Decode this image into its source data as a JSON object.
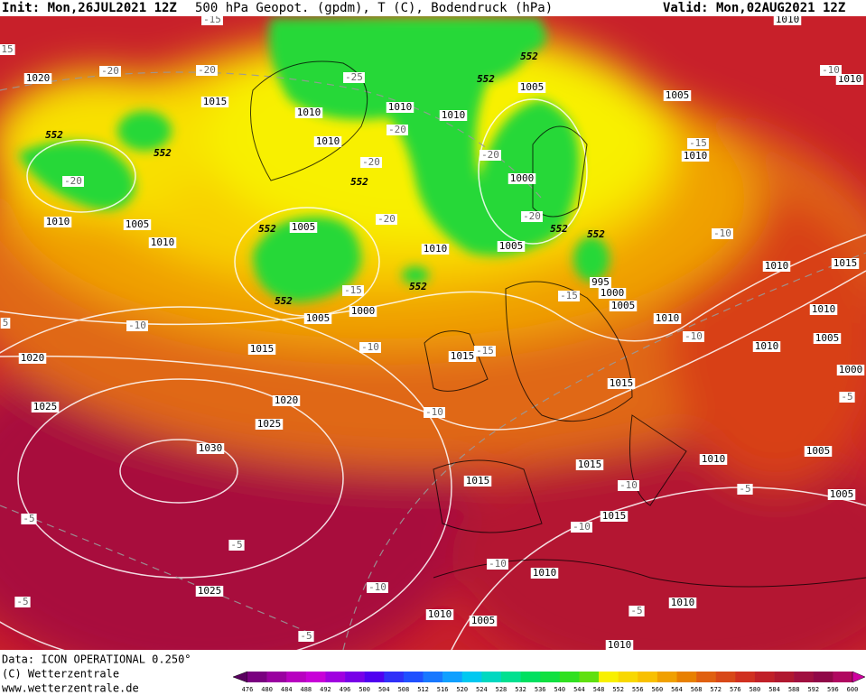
{
  "header": {
    "init": "Init: Mon,26JUL2021 12Z",
    "title": "500 hPa Geopot. (gpdm), T (C), Bodendruck (hPa)",
    "valid": "Valid: Mon,02AUG2021 12Z"
  },
  "footer": {
    "source": "Data: ICON OPERATIONAL 0.250°",
    "copyright": "(C) Wetterzentrale",
    "url": "www.wetterzentrale.de"
  },
  "pressure_labels": [
    1020,
    1015,
    1010,
    1010,
    1010,
    1005,
    1005,
    1010,
    1010,
    1010,
    1000,
    1010,
    1005,
    1010,
    1005,
    1010,
    1005,
    1010,
    1015,
    1000,
    1005,
    1000,
    995,
    1005,
    1010,
    1010,
    1005,
    1010,
    1000,
    1015,
    1015,
    1020,
    1015,
    1020,
    1025,
    1025,
    1030,
    1015,
    1010,
    1005,
    1015,
    1005,
    1015,
    1010,
    1010,
    1025,
    1010,
    1005,
    1010,
    1010
  ],
  "temperature_labels": [
    -15,
    -20,
    -20,
    -25,
    -20,
    -20,
    -20,
    -20,
    -20,
    -20,
    -15,
    -10,
    -15,
    -15,
    -10,
    -10,
    -15,
    -10,
    -10,
    -10,
    -5,
    -10,
    -5,
    -5,
    -10,
    -10,
    -5,
    -5,
    -5,
    -5,
    -10,
    5,
    15
  ],
  "geopotential_labels": [
    552,
    552,
    552,
    552,
    552,
    552,
    552,
    552,
    552,
    552
  ],
  "colorbar": {
    "ticks": [
      476,
      480,
      484,
      488,
      492,
      496,
      500,
      504,
      508,
      512,
      516,
      520,
      524,
      528,
      532,
      536,
      540,
      544,
      548,
      552,
      556,
      560,
      564,
      568,
      572,
      576,
      580,
      584,
      588,
      592,
      596,
      600
    ],
    "colors": [
      "#5a0060",
      "#7a0080",
      "#9a00a0",
      "#b800c0",
      "#c800d8",
      "#a000e0",
      "#7800e8",
      "#5000f0",
      "#3030f8",
      "#2050ff",
      "#1878ff",
      "#10a0ff",
      "#00c8f0",
      "#00d8c0",
      "#00e090",
      "#00e060",
      "#10e040",
      "#30e020",
      "#60e010",
      "#f8f000",
      "#f8d800",
      "#f8c000",
      "#f0a000",
      "#e88000",
      "#e06010",
      "#d84818",
      "#d03020",
      "#c02028",
      "#b01830",
      "#a01040",
      "#900848",
      "#b00860",
      "#d000a0"
    ]
  }
}
